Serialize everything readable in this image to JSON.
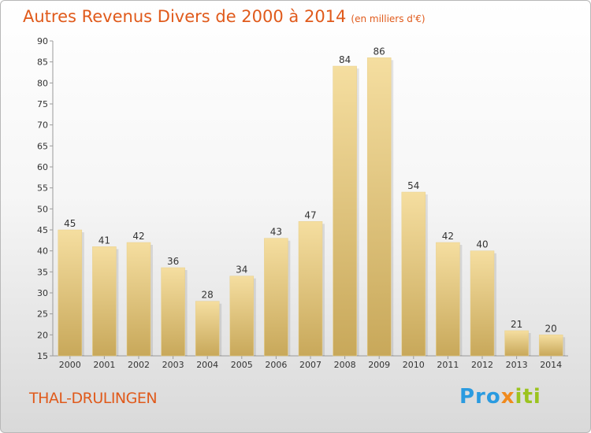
{
  "chart_data": {
    "type": "bar",
    "title": "Autres Revenus Divers de 2000 à 2014",
    "subtitle": "(en milliers d'€)",
    "categories": [
      "2000",
      "2001",
      "2002",
      "2003",
      "2004",
      "2005",
      "2006",
      "2007",
      "2008",
      "2009",
      "2010",
      "2011",
      "2012",
      "2013",
      "2014"
    ],
    "values": [
      45,
      41,
      42,
      36,
      28,
      34,
      43,
      47,
      84,
      86,
      54,
      42,
      40,
      21,
      20
    ],
    "ylim": [
      15,
      90
    ],
    "yticks": [
      15,
      20,
      25,
      30,
      35,
      40,
      45,
      50,
      55,
      60,
      65,
      70,
      75,
      80,
      85,
      90
    ],
    "grid": false,
    "bar_color_light": "#f5dea0",
    "bar_color_dark": "#c8a85a"
  },
  "footer": {
    "commune": "THAL-DRULINGEN",
    "brand_parts": [
      "Pro",
      "x",
      "iti"
    ]
  },
  "colors": {
    "title": "#e05a1b",
    "brand_blue": "#2a9be0",
    "brand_orange": "#f08a1d",
    "brand_green": "#9bc31f"
  }
}
